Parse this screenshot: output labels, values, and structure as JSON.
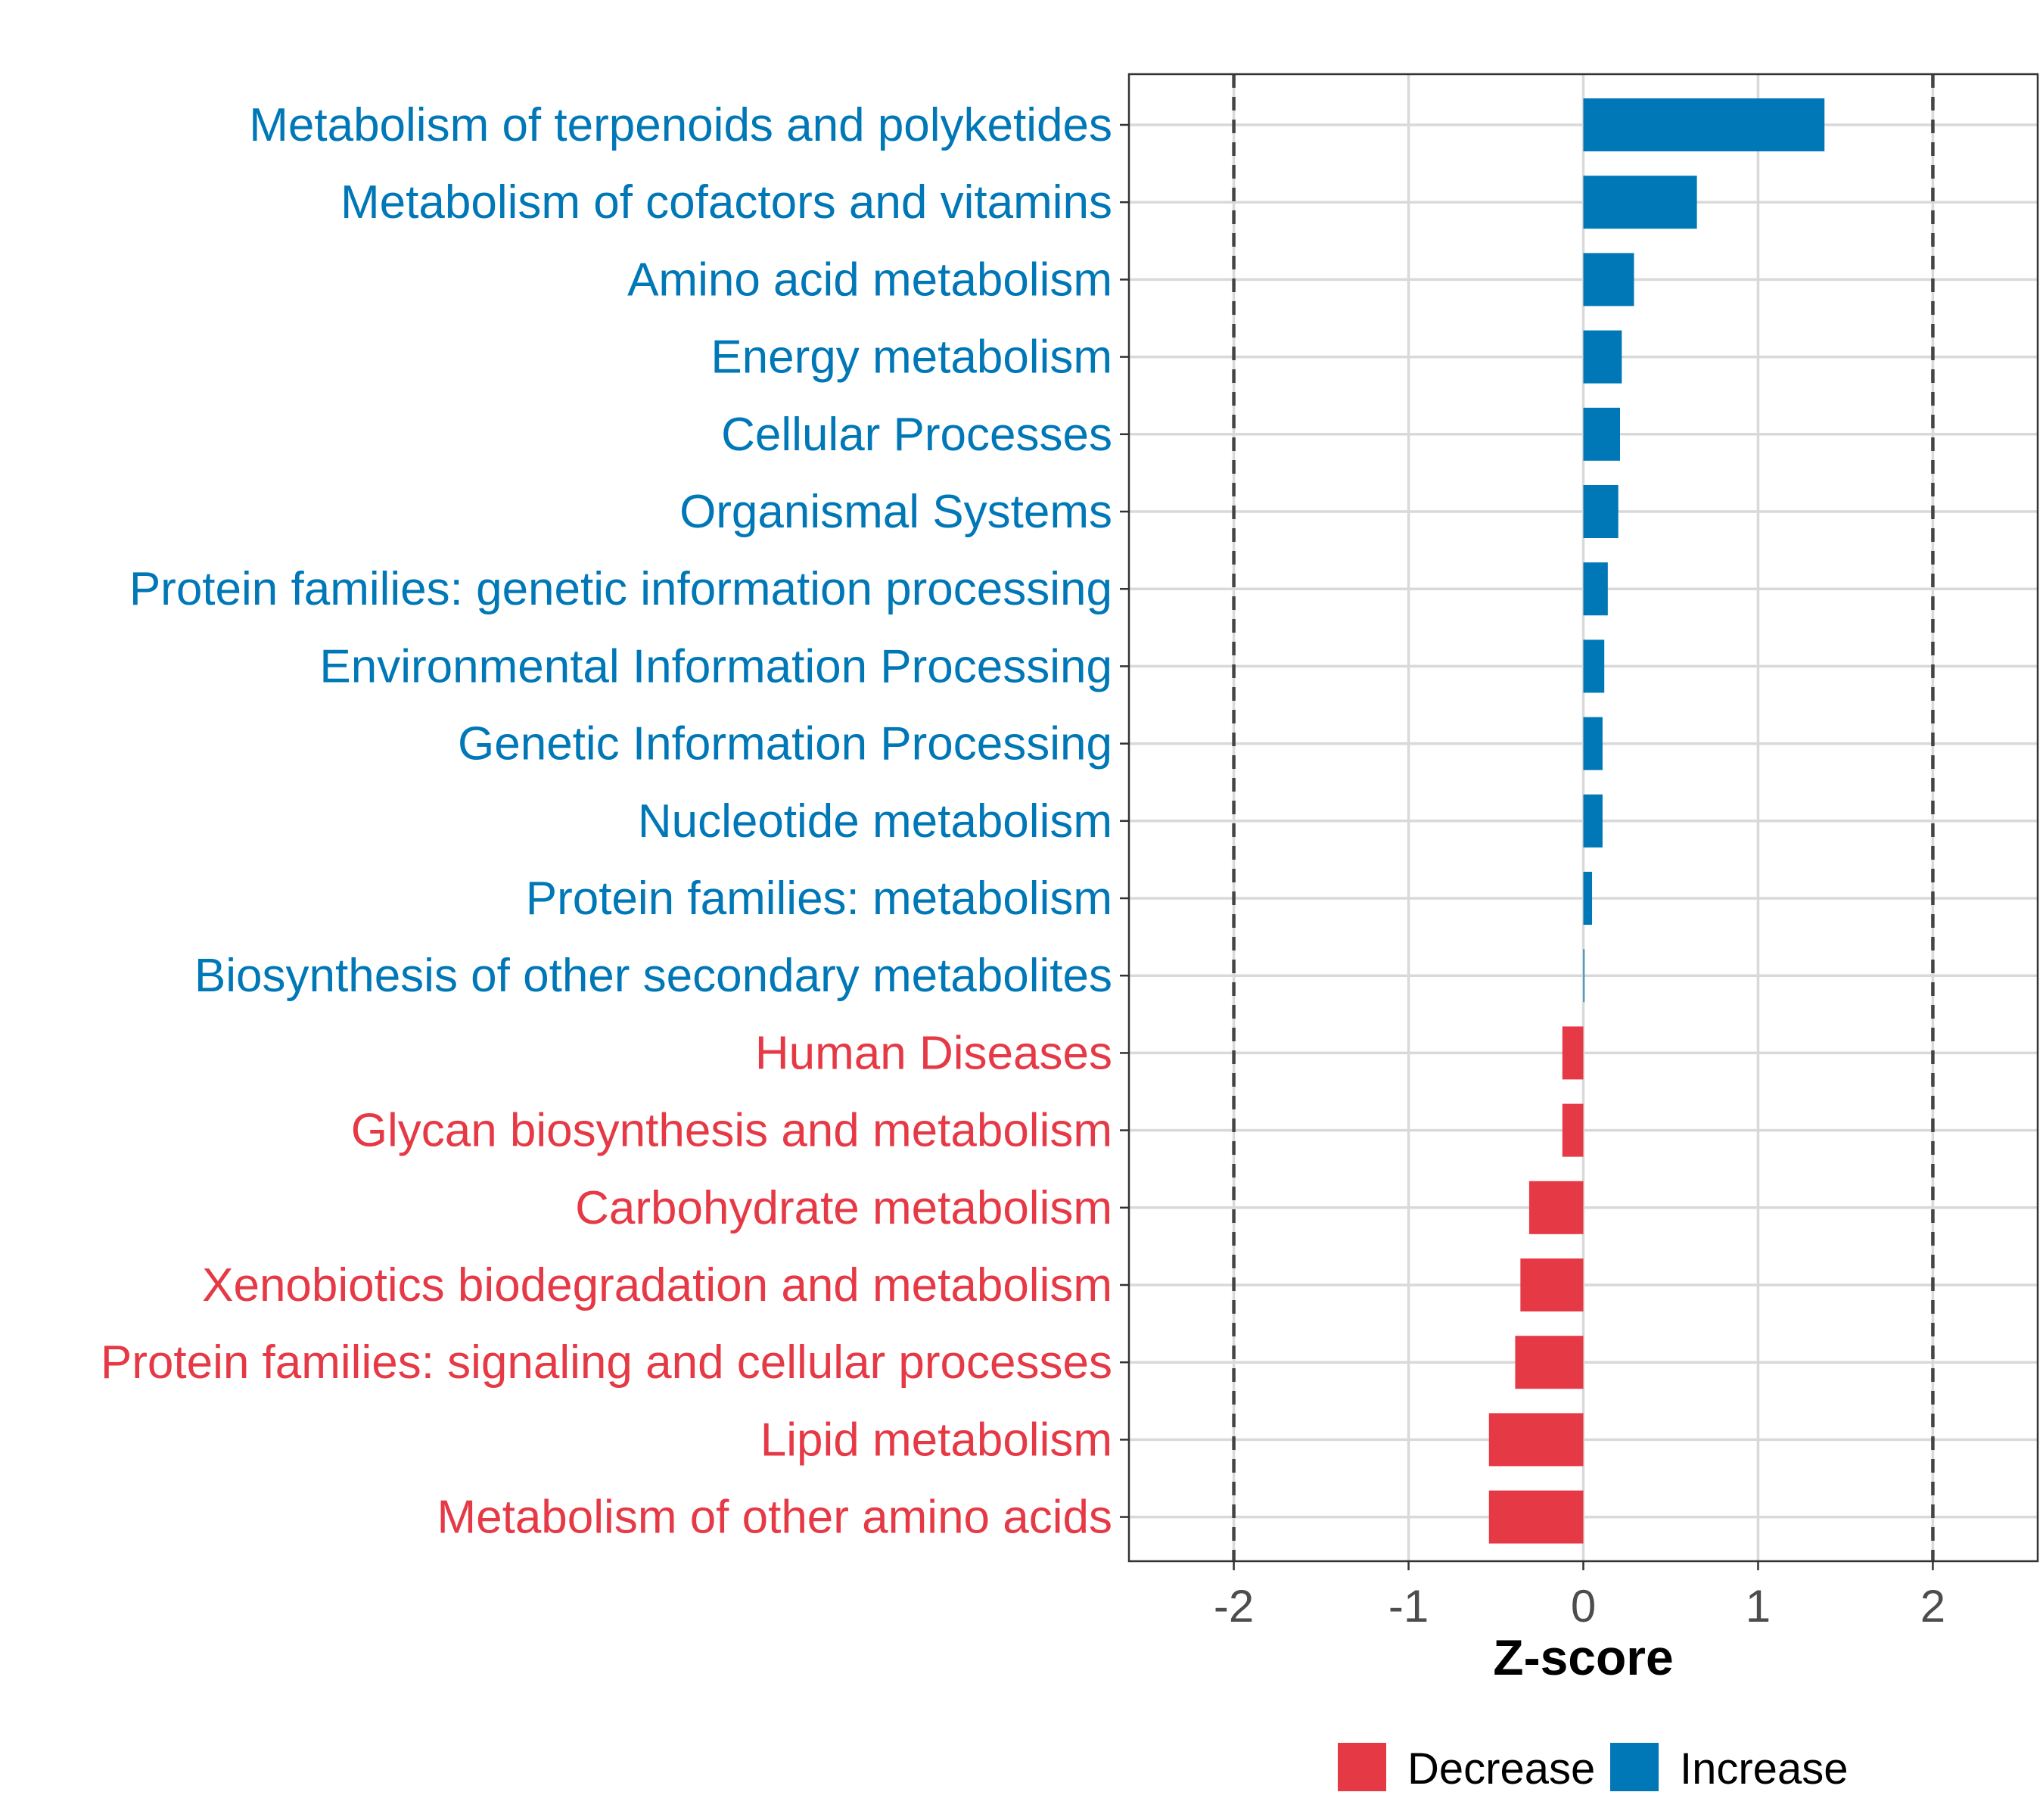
{
  "chart_data": {
    "type": "bar",
    "orientation": "horizontal",
    "title": "",
    "xlabel": "Z-score",
    "ylabel": "",
    "xlim": [
      -2.6,
      2.6
    ],
    "xticks": [
      -2,
      -1,
      0,
      1,
      2
    ],
    "xtick_labels": [
      "-2",
      "-1",
      "0",
      "1",
      "2"
    ],
    "reference_lines": [
      -2,
      2
    ],
    "grid": true,
    "legend_position": "bottom",
    "colors": {
      "Decrease": "#E63946",
      "Increase": "#0077B6"
    },
    "categories": [
      "Metabolism of terpenoids and polyketides",
      "Metabolism of cofactors and vitamins",
      "Amino acid metabolism",
      "Energy metabolism",
      "Cellular Processes",
      "Organismal Systems",
      "Protein families: genetic information processing",
      "Environmental Information Processing",
      "Genetic Information Processing",
      "Nucleotide metabolism",
      "Protein families: metabolism",
      "Biosynthesis of other secondary metabolites",
      "Human Diseases",
      "Glycan biosynthesis and metabolism",
      "Carbohydrate metabolism",
      "Xenobiotics biodegradation and metabolism",
      "Protein families: signaling and cellular processes",
      "Lipid metabolism",
      "Metabolism of other amino acids"
    ],
    "values": [
      1.38,
      0.65,
      0.29,
      0.22,
      0.21,
      0.2,
      0.14,
      0.12,
      0.11,
      0.11,
      0.05,
      0.005,
      -0.12,
      -0.12,
      -0.31,
      -0.36,
      -0.39,
      -0.54,
      -0.54
    ],
    "groups": [
      "Increase",
      "Increase",
      "Increase",
      "Increase",
      "Increase",
      "Increase",
      "Increase",
      "Increase",
      "Increase",
      "Increase",
      "Increase",
      "Increase",
      "Decrease",
      "Decrease",
      "Decrease",
      "Decrease",
      "Decrease",
      "Decrease",
      "Decrease"
    ],
    "legend": [
      {
        "label": "Decrease",
        "color": "#E63946"
      },
      {
        "label": "Increase",
        "color": "#0077B6"
      }
    ]
  }
}
